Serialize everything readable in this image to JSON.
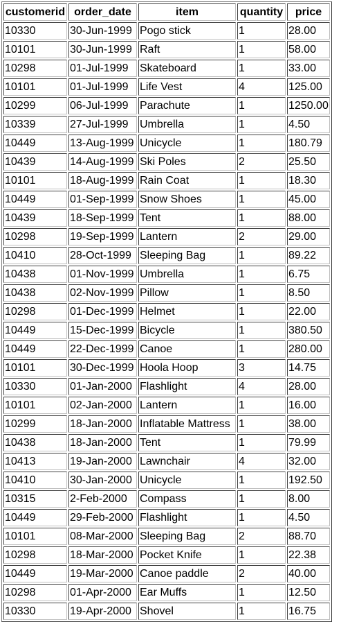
{
  "table": {
    "columns": [
      "customerid",
      "order_date",
      "item",
      "quantity",
      "price"
    ],
    "rows": [
      [
        "10330",
        "30-Jun-1999",
        "Pogo stick",
        "1",
        "28.00"
      ],
      [
        "10101",
        "30-Jun-1999",
        "Raft",
        "1",
        "58.00"
      ],
      [
        "10298",
        "01-Jul-1999",
        "Skateboard",
        "1",
        "33.00"
      ],
      [
        "10101",
        "01-Jul-1999",
        "Life Vest",
        "4",
        "125.00"
      ],
      [
        "10299",
        "06-Jul-1999",
        "Parachute",
        "1",
        "1250.00"
      ],
      [
        "10339",
        "27-Jul-1999",
        "Umbrella",
        "1",
        "4.50"
      ],
      [
        "10449",
        "13-Aug-1999",
        "Unicycle",
        "1",
        "180.79"
      ],
      [
        "10439",
        "14-Aug-1999",
        "Ski Poles",
        "2",
        "25.50"
      ],
      [
        "10101",
        "18-Aug-1999",
        "Rain Coat",
        "1",
        "18.30"
      ],
      [
        "10449",
        "01-Sep-1999",
        "Snow Shoes",
        "1",
        "45.00"
      ],
      [
        "10439",
        "18-Sep-1999",
        "Tent",
        "1",
        "88.00"
      ],
      [
        "10298",
        "19-Sep-1999",
        "Lantern",
        "2",
        "29.00"
      ],
      [
        "10410",
        "28-Oct-1999",
        "Sleeping Bag",
        "1",
        "89.22"
      ],
      [
        "10438",
        "01-Nov-1999",
        "Umbrella",
        "1",
        "6.75"
      ],
      [
        "10438",
        "02-Nov-1999",
        "Pillow",
        "1",
        "8.50"
      ],
      [
        "10298",
        "01-Dec-1999",
        "Helmet",
        "1",
        "22.00"
      ],
      [
        "10449",
        "15-Dec-1999",
        "Bicycle",
        "1",
        "380.50"
      ],
      [
        "10449",
        "22-Dec-1999",
        "Canoe",
        "1",
        "280.00"
      ],
      [
        "10101",
        "30-Dec-1999",
        "Hoola Hoop",
        "3",
        "14.75"
      ],
      [
        "10330",
        "01-Jan-2000",
        "Flashlight",
        "4",
        "28.00"
      ],
      [
        "10101",
        "02-Jan-2000",
        "Lantern",
        "1",
        "16.00"
      ],
      [
        "10299",
        "18-Jan-2000",
        "Inflatable Mattress",
        "1",
        "38.00"
      ],
      [
        "10438",
        "18-Jan-2000",
        "Tent",
        "1",
        "79.99"
      ],
      [
        "10413",
        "19-Jan-2000",
        "Lawnchair",
        "4",
        "32.00"
      ],
      [
        "10410",
        "30-Jan-2000",
        "Unicycle",
        "1",
        "192.50"
      ],
      [
        "10315",
        "2-Feb-2000",
        "Compass",
        "1",
        "8.00"
      ],
      [
        "10449",
        "29-Feb-2000",
        "Flashlight",
        "1",
        "4.50"
      ],
      [
        "10101",
        "08-Mar-2000",
        "Sleeping Bag",
        "2",
        "88.70"
      ],
      [
        "10298",
        "18-Mar-2000",
        "Pocket Knife",
        "1",
        "22.38"
      ],
      [
        "10449",
        "19-Mar-2000",
        "Canoe paddle",
        "2",
        "40.00"
      ],
      [
        "10298",
        "01-Apr-2000",
        "Ear Muffs",
        "1",
        "12.50"
      ],
      [
        "10330",
        "19-Apr-2000",
        "Shovel",
        "1",
        "16.75"
      ]
    ]
  }
}
